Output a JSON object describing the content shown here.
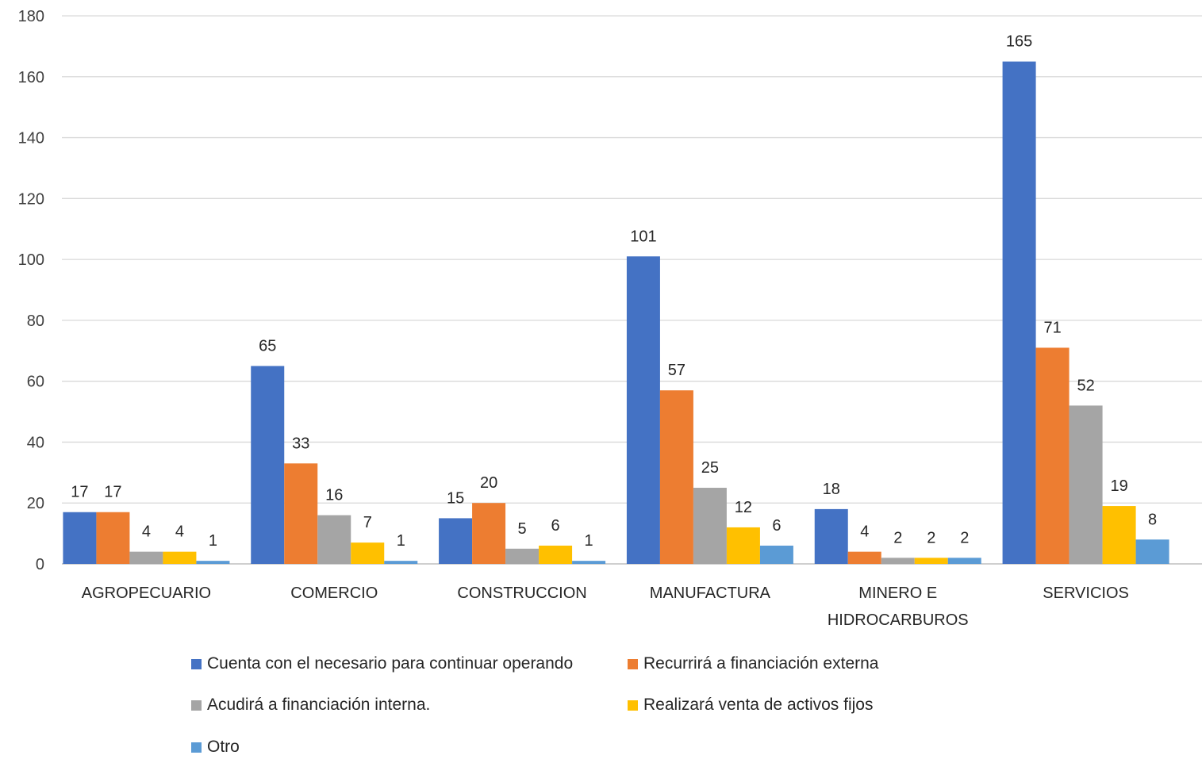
{
  "chart_data": {
    "type": "bar",
    "categories": [
      [
        "AGROPECUARIO"
      ],
      [
        "COMERCIO"
      ],
      [
        "CONSTRUCCION"
      ],
      [
        "MANUFACTURA"
      ],
      [
        "MINERO E",
        "HIDROCARBUROS"
      ],
      [
        "SERVICIOS"
      ]
    ],
    "series": [
      {
        "name": "Cuenta con el necesario para continuar operando",
        "color": "#4472C4",
        "values": [
          17,
          65,
          15,
          101,
          18,
          165
        ]
      },
      {
        "name": "Recurrirá a financiación externa",
        "color": "#ED7D31",
        "values": [
          17,
          33,
          20,
          57,
          4,
          71
        ]
      },
      {
        "name": "Acudirá a financiación interna.",
        "color": "#A5A5A5",
        "values": [
          4,
          16,
          5,
          25,
          2,
          52
        ]
      },
      {
        "name": "Realizará venta de activos fijos",
        "color": "#FFC000",
        "values": [
          4,
          7,
          6,
          12,
          2,
          19
        ]
      },
      {
        "name": "Otro",
        "color": "#5B9BD5",
        "values": [
          1,
          1,
          1,
          6,
          2,
          8
        ]
      }
    ],
    "ylim": [
      0,
      180
    ],
    "yticks": [
      0,
      20,
      40,
      60,
      80,
      100,
      120,
      140,
      160,
      180
    ],
    "grid": true,
    "data_labels": true,
    "legend_position": "bottom"
  }
}
